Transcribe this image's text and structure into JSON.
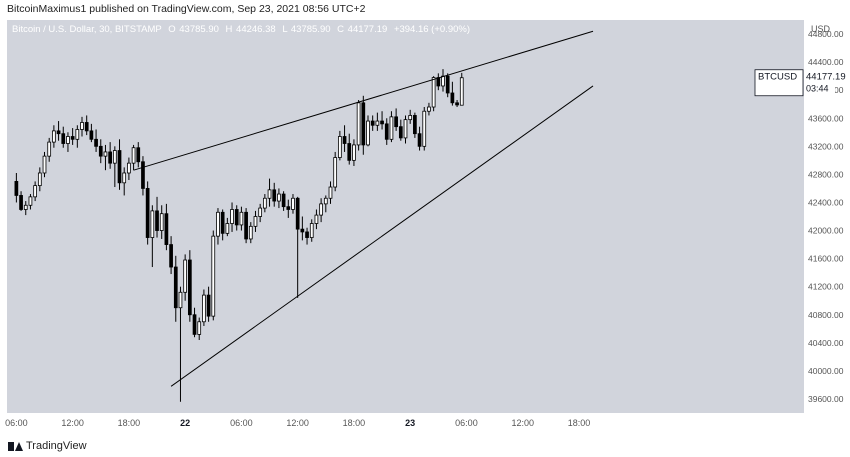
{
  "header": {
    "published": "BitcoinMaximus1 published on TradingView.com, Sep 23, 2021 08:56 UTC+2"
  },
  "legend": {
    "symbol": "Bitcoin / U.S. Dollar, 30, BITSTAMP",
    "o_label": "O",
    "o_value": "43785.90",
    "h_label": "H",
    "h_value": "44246.38",
    "l_label": "L",
    "l_value": "43785.90",
    "c_label": "C",
    "c_value": "44177.19",
    "change": "+394.16 (+0.90%)"
  },
  "price_tag": {
    "symbol": "BTCUSD",
    "price": "44177.19",
    "countdown": "03:44"
  },
  "footer": {
    "brand": "TradingView"
  },
  "colors": {
    "background": "#d1d4dc",
    "up_fill": "#ffffff",
    "down_fill": "#000000",
    "line": "#000000"
  },
  "chart_data": {
    "type": "candlestick",
    "interval": "30",
    "ylabel": "USD",
    "ylim": [
      39400,
      45000
    ],
    "y_ticks": [
      39600,
      40000,
      40400,
      40800,
      41200,
      41600,
      42000,
      42400,
      42800,
      43200,
      43600,
      44000,
      44400,
      44800
    ],
    "y_tick_labels": [
      "39600.00",
      "40000.00",
      "40400.00",
      "40800.00",
      "41200.00",
      "41600.00",
      "42000.00",
      "42400.00",
      "42800.00",
      "43200.00",
      "43600.00",
      "44000.00",
      "44400.00",
      "44800.00"
    ],
    "x_range_hours": [
      -1,
      84
    ],
    "x_ticks": [
      {
        "h": 0,
        "label": "06:00"
      },
      {
        "h": 6,
        "label": "12:00"
      },
      {
        "h": 12,
        "label": "18:00"
      },
      {
        "h": 18,
        "label": "22"
      },
      {
        "h": 24,
        "label": "06:00"
      },
      {
        "h": 30,
        "label": "12:00"
      },
      {
        "h": 36,
        "label": "18:00"
      },
      {
        "h": 42,
        "label": "23"
      },
      {
        "h": 48,
        "label": "06:00"
      },
      {
        "h": 54,
        "label": "12:00"
      },
      {
        "h": 60,
        "label": "18:00"
      }
    ],
    "candles": [
      [
        42700,
        42820,
        42400,
        42500
      ],
      [
        42500,
        42560,
        42280,
        42300
      ],
      [
        42300,
        42420,
        42220,
        42360
      ],
      [
        42360,
        42520,
        42300,
        42480
      ],
      [
        42480,
        42700,
        42420,
        42640
      ],
      [
        42640,
        42900,
        42560,
        42820
      ],
      [
        42820,
        43120,
        42760,
        43060
      ],
      [
        43060,
        43320,
        42980,
        43260
      ],
      [
        43260,
        43500,
        43180,
        43420
      ],
      [
        43420,
        43560,
        43280,
        43380
      ],
      [
        43380,
        43480,
        43180,
        43240
      ],
      [
        43240,
        43400,
        43120,
        43340
      ],
      [
        43340,
        43460,
        43220,
        43300
      ],
      [
        43300,
        43500,
        43180,
        43440
      ],
      [
        43440,
        43620,
        43340,
        43540
      ],
      [
        43540,
        43640,
        43360,
        43420
      ],
      [
        43420,
        43520,
        43260,
        43300
      ],
      [
        43300,
        43440,
        43120,
        43200
      ],
      [
        43200,
        43300,
        42960,
        43060
      ],
      [
        43060,
        43220,
        42860,
        43120
      ],
      [
        43120,
        43260,
        42880,
        42960
      ],
      [
        42960,
        43200,
        42620,
        43140
      ],
      [
        43140,
        43300,
        42580,
        42680
      ],
      [
        42680,
        42900,
        42500,
        42820
      ],
      [
        42820,
        43040,
        42720,
        42960
      ],
      [
        42960,
        43220,
        42860,
        43180
      ],
      [
        43180,
        43260,
        42900,
        42980
      ],
      [
        42980,
        43060,
        42500,
        42600
      ],
      [
        42600,
        42700,
        41800,
        41900
      ],
      [
        41900,
        42360,
        41480,
        42280
      ],
      [
        42280,
        42480,
        41900,
        42000
      ],
      [
        42000,
        42360,
        41880,
        42240
      ],
      [
        42240,
        42380,
        41720,
        41800
      ],
      [
        41800,
        41920,
        41380,
        41480
      ],
      [
        41480,
        41640,
        40700,
        40900
      ],
      [
        40900,
        41200,
        39560,
        41120
      ],
      [
        41120,
        41660,
        41000,
        41580
      ],
      [
        41580,
        41720,
        40700,
        40800
      ],
      [
        40800,
        40900,
        40480,
        40520
      ],
      [
        40520,
        40760,
        40440,
        40700
      ],
      [
        40700,
        41160,
        40640,
        41080
      ],
      [
        41080,
        41200,
        40700,
        40780
      ],
      [
        40780,
        42000,
        40720,
        41920
      ],
      [
        41920,
        42320,
        41800,
        42260
      ],
      [
        42260,
        42300,
        41860,
        41960
      ],
      [
        41960,
        42180,
        41920,
        42100
      ],
      [
        42100,
        42400,
        41980,
        42300
      ],
      [
        42300,
        42360,
        42000,
        42080
      ],
      [
        42080,
        42340,
        42000,
        42260
      ],
      [
        42260,
        42320,
        41820,
        41880
      ],
      [
        41880,
        42120,
        41820,
        42060
      ],
      [
        42060,
        42280,
        41980,
        42200
      ],
      [
        42200,
        42380,
        42120,
        42320
      ],
      [
        42320,
        42520,
        42260,
        42460
      ],
      [
        42460,
        42740,
        42340,
        42580
      ],
      [
        42580,
        42680,
        42340,
        42420
      ],
      [
        42420,
        42600,
        42320,
        42520
      ],
      [
        42520,
        42560,
        42280,
        42340
      ],
      [
        42340,
        42440,
        42180,
        42300
      ],
      [
        42300,
        42520,
        42240,
        42460
      ],
      [
        42460,
        42480,
        41040,
        42020
      ],
      [
        42020,
        42200,
        41860,
        41980
      ],
      [
        41980,
        42040,
        41800,
        41900
      ],
      [
        41900,
        42160,
        41840,
        42100
      ],
      [
        42100,
        42300,
        42020,
        42220
      ],
      [
        42220,
        42460,
        42120,
        42380
      ],
      [
        42380,
        42500,
        42260,
        42460
      ],
      [
        42460,
        42700,
        42380,
        42620
      ],
      [
        42620,
        43120,
        42560,
        43040
      ],
      [
        43040,
        43420,
        43000,
        43340
      ],
      [
        43340,
        43500,
        43120,
        43240
      ],
      [
        43240,
        43380,
        42940,
        43000
      ],
      [
        43000,
        43300,
        42920,
        43220
      ],
      [
        43220,
        43860,
        43140,
        43820
      ],
      [
        43820,
        43920,
        43080,
        43220
      ],
      [
        43220,
        43640,
        43200,
        43560
      ],
      [
        43560,
        43640,
        43420,
        43500
      ],
      [
        43500,
        43680,
        43420,
        43560
      ],
      [
        43560,
        43700,
        43440,
        43520
      ],
      [
        43520,
        43600,
        43220,
        43300
      ],
      [
        43300,
        43700,
        43260,
        43620
      ],
      [
        43620,
        43740,
        43420,
        43480
      ],
      [
        43480,
        43580,
        43280,
        43320
      ],
      [
        43320,
        43640,
        43240,
        43580
      ],
      [
        43580,
        43720,
        43520,
        43640
      ],
      [
        43640,
        43680,
        43320,
        43380
      ],
      [
        43380,
        43480,
        43140,
        43200
      ],
      [
        43200,
        43760,
        43140,
        43700
      ],
      [
        43700,
        43820,
        43640,
        43760
      ],
      [
        43760,
        44200,
        43700,
        44180
      ],
      [
        44180,
        44240,
        44000,
        44060
      ],
      [
        44060,
        44300,
        43980,
        44200
      ],
      [
        44200,
        44240,
        43900,
        43960
      ],
      [
        43960,
        44120,
        43780,
        43820
      ],
      [
        43820,
        43860,
        43760,
        43790
      ],
      [
        43785.9,
        44246.38,
        43785.9,
        44177.19
      ]
    ],
    "trendlines": [
      {
        "name": "upper",
        "from": [
          12.5,
          42860
        ],
        "to": [
          61.5,
          44840
        ]
      },
      {
        "name": "lower",
        "from": [
          16.5,
          39780
        ],
        "to": [
          61.5,
          44060
        ]
      }
    ]
  }
}
